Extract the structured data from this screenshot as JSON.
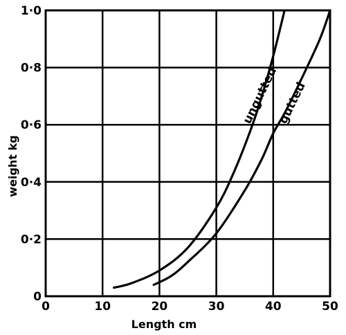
{
  "chart_data": {
    "type": "line",
    "xlabel": "Length cm",
    "ylabel": "weight kg",
    "xlim": [
      0,
      50
    ],
    "ylim": [
      0,
      1.0
    ],
    "x_ticks": [
      "0",
      "10",
      "20",
      "30",
      "40",
      "50"
    ],
    "y_ticks": [
      "0",
      "0·2",
      "0·4",
      "0·6",
      "0·8",
      "1·0"
    ],
    "grid": true,
    "legend": "none",
    "series": [
      {
        "name": "ungutted",
        "points": [
          [
            12,
            0.03
          ],
          [
            15,
            0.045
          ],
          [
            20,
            0.09
          ],
          [
            25,
            0.17
          ],
          [
            30,
            0.31
          ],
          [
            33,
            0.43
          ],
          [
            36,
            0.58
          ],
          [
            38,
            0.7
          ],
          [
            40,
            0.84
          ],
          [
            42,
            1.0
          ]
        ]
      },
      {
        "name": "gutted",
        "points": [
          [
            19,
            0.04
          ],
          [
            22,
            0.07
          ],
          [
            25,
            0.12
          ],
          [
            30,
            0.22
          ],
          [
            35,
            0.37
          ],
          [
            38,
            0.48
          ],
          [
            40,
            0.57
          ],
          [
            42,
            0.64
          ],
          [
            44,
            0.72
          ],
          [
            48,
            0.89
          ],
          [
            50,
            1.0
          ]
        ]
      }
    ]
  }
}
